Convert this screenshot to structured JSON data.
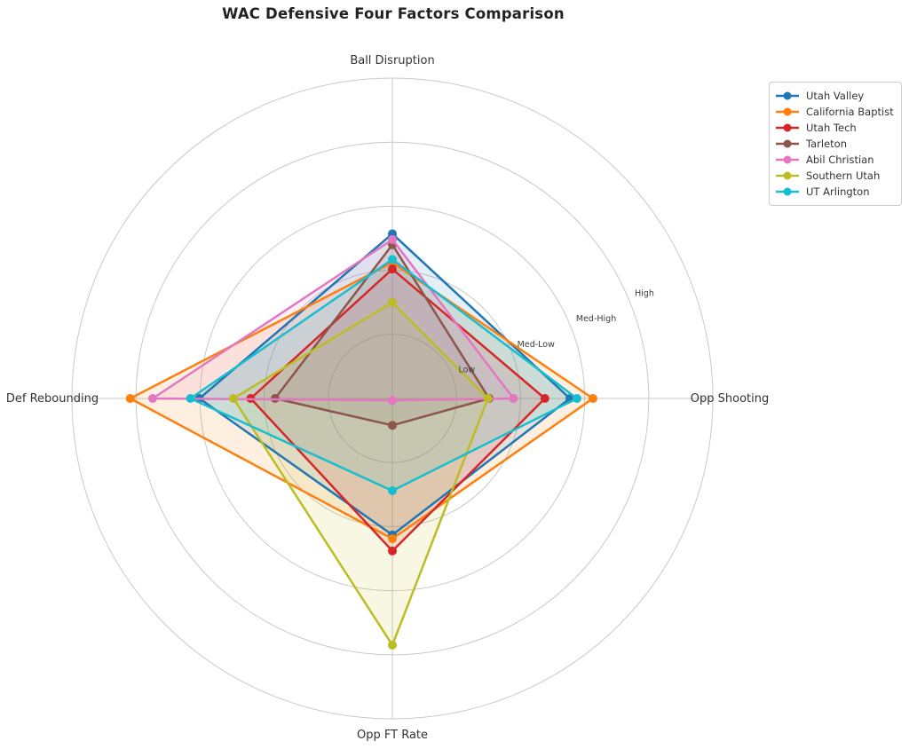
{
  "title": "WAC Defensive Four Factors Comparison",
  "chart_data": {
    "type": "radar",
    "title": "WAC Defensive Four Factors Comparison",
    "categories": [
      "Ball Disruption",
      "Opp Shooting",
      "Opp FT Rate",
      "Def Rebounding"
    ],
    "axis_angles_deg": [
      90,
      0,
      -90,
      180
    ],
    "rlim": [
      0,
      5
    ],
    "grid": true,
    "grid_rings": [
      1,
      2,
      3,
      4,
      5
    ],
    "radial_ticks": {
      "values": [
        1,
        2,
        3,
        4
      ],
      "labels": [
        "Low",
        "Med-Low",
        "Med-High",
        "High"
      ],
      "label_angle_deg": 23.5
    },
    "legend_position": "upper right",
    "series": [
      {
        "name": "Utah Valley",
        "color": "#1f77b4",
        "values": [
          2.57,
          2.77,
          2.13,
          3.01
        ]
      },
      {
        "name": "California Baptist",
        "color": "#ff7f0e",
        "values": [
          2.12,
          3.13,
          2.19,
          4.09
        ]
      },
      {
        "name": "Utah Tech",
        "color": "#d62728",
        "values": [
          2.02,
          2.38,
          2.38,
          2.21
        ]
      },
      {
        "name": "Tarleton",
        "color": "#8c564b",
        "values": [
          2.4,
          1.51,
          0.42,
          1.83
        ]
      },
      {
        "name": "Abil Christian",
        "color": "#e377c2",
        "values": [
          2.48,
          1.89,
          0.03,
          3.74
        ]
      },
      {
        "name": "Southern Utah",
        "color": "#bcbd22",
        "values": [
          1.5,
          1.49,
          3.85,
          2.48
        ]
      },
      {
        "name": "UT Arlington",
        "color": "#17becf",
        "values": [
          2.17,
          2.88,
          1.44,
          3.15
        ]
      }
    ],
    "style": {
      "grid_color": "#c9c9c9",
      "fill_alpha": 0.125,
      "line_width": 2.5,
      "marker_radius": 5,
      "tick_label_color": "#3d3d3d",
      "axis_label_color": "#333333"
    }
  }
}
